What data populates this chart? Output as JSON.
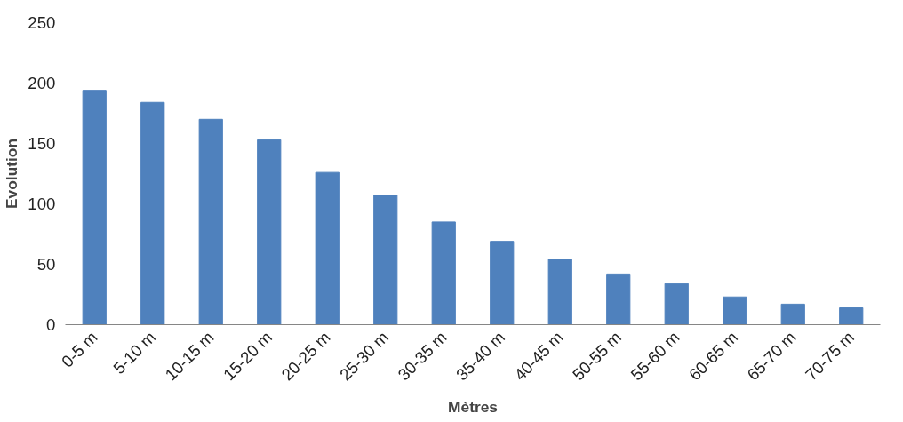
{
  "chart_data": {
    "type": "bar",
    "xlabel": "Mètres",
    "ylabel": "Evolution",
    "categories": [
      "0-5 m",
      "5-10 m",
      "10-15 m",
      "15-20 m",
      "20-25 m",
      "25-30 m",
      "30-35 m",
      "35-40 m",
      "40-45 m",
      "50-55 m",
      "55-60 m",
      "60-65 m",
      "65-70 m",
      "70-75 m"
    ],
    "values": [
      194,
      184,
      170,
      153,
      126,
      107,
      85,
      69,
      54,
      42,
      34,
      23,
      17,
      14
    ],
    "color": "#4f81bd",
    "ylim": [
      0,
      250
    ],
    "yticks": [
      0,
      50,
      100,
      150,
      200,
      250
    ],
    "grid": false
  }
}
